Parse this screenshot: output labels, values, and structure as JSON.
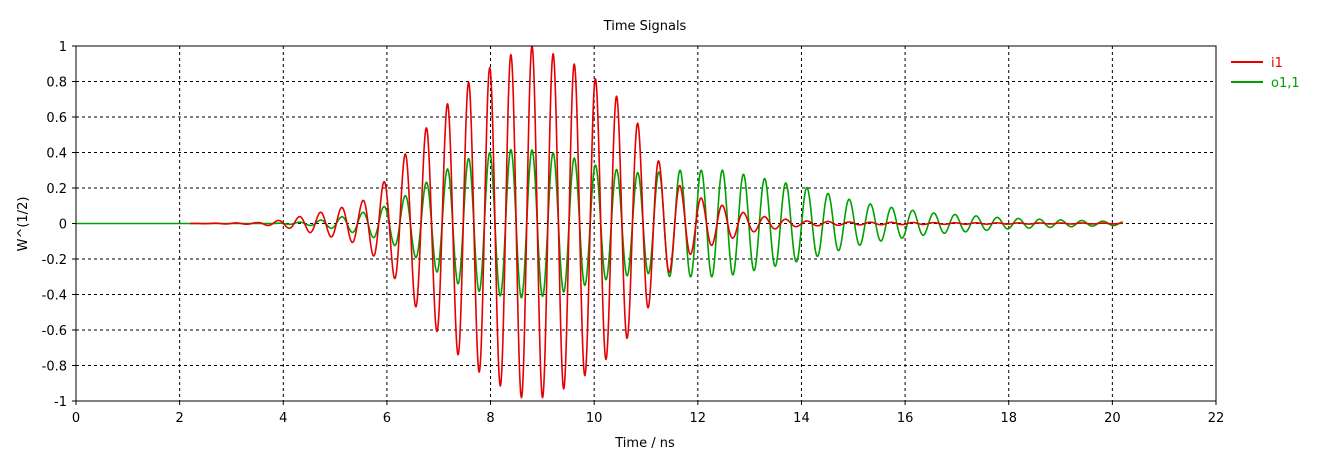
{
  "chart_data": {
    "type": "line",
    "title": "Time Signals",
    "xlabel": "Time / ns",
    "ylabel": "W^(1/2)",
    "xlim": [
      0,
      22
    ],
    "ylim": [
      -1,
      1
    ],
    "x_ticks": [
      "0",
      "2",
      "4",
      "6",
      "8",
      "10",
      "12",
      "14",
      "16",
      "18",
      "20",
      "22"
    ],
    "y_ticks": [
      "-1",
      "-0.8",
      "-0.6",
      "-0.4",
      "-0.2",
      "0",
      "0.2",
      "0.4",
      "0.6",
      "0.8",
      "1"
    ],
    "grid": true,
    "legend_position": "right",
    "series": [
      {
        "name": "i1",
        "color": "#e60000",
        "t_start": 2.2,
        "t_end": 20.2,
        "frequency_ghz": 2.45,
        "envelope_peak_time": 8.8,
        "envelope_peak_amplitude": 1.0,
        "envelope": [
          [
            2.2,
            0.0
          ],
          [
            3.5,
            0.005
          ],
          [
            4.0,
            0.02
          ],
          [
            4.5,
            0.05
          ],
          [
            5.0,
            0.08
          ],
          [
            5.5,
            0.12
          ],
          [
            6.0,
            0.25
          ],
          [
            6.5,
            0.45
          ],
          [
            7.0,
            0.62
          ],
          [
            7.5,
            0.78
          ],
          [
            8.0,
            0.88
          ],
          [
            8.5,
            0.97
          ],
          [
            8.8,
            1.0
          ],
          [
            9.0,
            0.98
          ],
          [
            9.5,
            0.92
          ],
          [
            10.0,
            0.82
          ],
          [
            10.5,
            0.7
          ],
          [
            11.0,
            0.5
          ],
          [
            11.3,
            0.32
          ],
          [
            11.7,
            0.2
          ],
          [
            12.0,
            0.15
          ],
          [
            12.5,
            0.1
          ],
          [
            13.0,
            0.05
          ],
          [
            13.5,
            0.03
          ],
          [
            14.0,
            0.015
          ],
          [
            15.0,
            0.008
          ],
          [
            17.0,
            0.004
          ],
          [
            20.2,
            0.002
          ]
        ]
      },
      {
        "name": "o1,1",
        "color": "#00a000",
        "t_start": 0,
        "t_end": 20.2,
        "frequency_ghz": 2.45,
        "envelope": [
          [
            0,
            0.0
          ],
          [
            3.8,
            0.0
          ],
          [
            4.5,
            0.01
          ],
          [
            5.0,
            0.03
          ],
          [
            5.5,
            0.06
          ],
          [
            6.0,
            0.1
          ],
          [
            6.5,
            0.18
          ],
          [
            7.0,
            0.28
          ],
          [
            7.5,
            0.36
          ],
          [
            8.0,
            0.4
          ],
          [
            8.5,
            0.42
          ],
          [
            9.0,
            0.41
          ],
          [
            9.5,
            0.38
          ],
          [
            10.0,
            0.33
          ],
          [
            10.5,
            0.3
          ],
          [
            11.0,
            0.28
          ],
          [
            11.5,
            0.3
          ],
          [
            12.0,
            0.3
          ],
          [
            12.5,
            0.3
          ],
          [
            13.0,
            0.27
          ],
          [
            13.5,
            0.24
          ],
          [
            14.0,
            0.21
          ],
          [
            14.5,
            0.17
          ],
          [
            15.0,
            0.13
          ],
          [
            15.5,
            0.1
          ],
          [
            16.0,
            0.08
          ],
          [
            16.5,
            0.06
          ],
          [
            17.0,
            0.05
          ],
          [
            17.5,
            0.04
          ],
          [
            18.0,
            0.03
          ],
          [
            19.0,
            0.02
          ],
          [
            20.2,
            0.01
          ]
        ]
      }
    ]
  }
}
